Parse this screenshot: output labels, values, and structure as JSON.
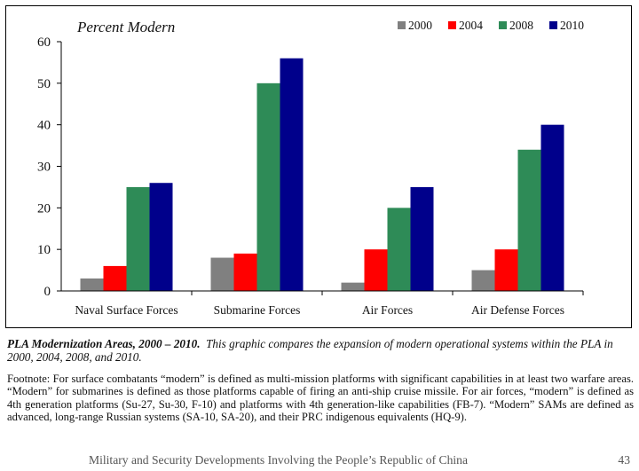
{
  "chart_data": {
    "type": "bar",
    "title": "Percent Modern",
    "categories": [
      "Naval Surface Forces",
      "Submarine Forces",
      "Air Forces",
      "Air Defense Forces"
    ],
    "series": [
      {
        "name": "2000",
        "color": "#808080",
        "values": [
          3,
          8,
          2,
          5
        ]
      },
      {
        "name": "2004",
        "color": "#ff0000",
        "values": [
          6,
          9,
          10,
          10
        ]
      },
      {
        "name": "2008",
        "color": "#2e8b57",
        "values": [
          25,
          50,
          20,
          34
        ]
      },
      {
        "name": "2010",
        "color": "#00008b",
        "values": [
          26,
          56,
          25,
          40
        ]
      }
    ],
    "yticks": [
      "0",
      "10",
      "20",
      "30",
      "40",
      "50",
      "60"
    ],
    "ylim": [
      0,
      60
    ],
    "grid": false,
    "legend_position": "top-right"
  },
  "caption": {
    "title": "PLA Modernization Areas, 2000 – 2010.",
    "text": "This graphic compares the expansion of modern operational systems within the PLA in 2000, 2004, 2008, and 2010."
  },
  "footnote": "Footnote: For surface combatants “modern” is defined as multi-mission platforms with significant capabilities in at least two warfare areas. “Modern” for submarines is defined as those platforms capable of firing an anti-ship cruise missile. For air forces, “modern” is defined as 4th generation platforms (Su-27, Su-30, F-10) and platforms with 4th generation-like capabilities (FB-7). “Modern” SAMs are defined as advanced, long-range Russian systems (SA-10, SA-20), and their PRC indigenous equivalents (HQ-9).",
  "footer": {
    "text": "Military and Security Developments Involving the People’s Republic of China",
    "page": "43"
  }
}
